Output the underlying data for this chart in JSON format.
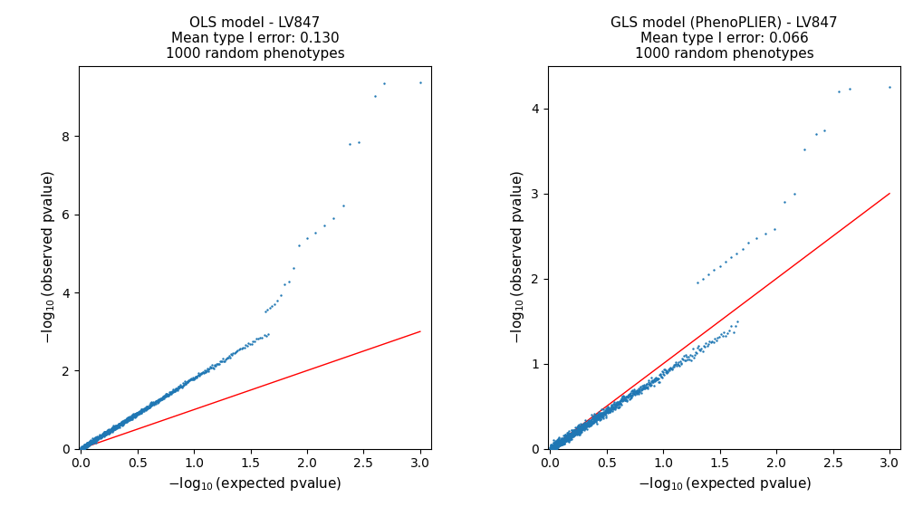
{
  "ols_title": "OLS model - LV847",
  "ols_subtitle1": "Mean type I error: 0.130",
  "ols_subtitle2": "1000 random phenotypes",
  "gls_title": "GLS model (PhenoPLIER) - LV847",
  "gls_subtitle1": "Mean type I error: 0.066",
  "gls_subtitle2": "1000 random phenotypes",
  "xlabel": "$-\\log_{10}$(expected pvalue)",
  "ylabel": "$-\\log_{10}$(observed pvalue)",
  "dot_color": "#1f77b4",
  "line_color": "red",
  "dot_size": 3,
  "ols_ylim": [
    0,
    9.8
  ],
  "gls_ylim": [
    0,
    4.5
  ],
  "xlim": [
    -0.02,
    3.1
  ],
  "ols_xticks": [
    0.0,
    0.5,
    1.0,
    1.5,
    2.0,
    2.5,
    3.0
  ],
  "ols_yticks": [
    0,
    2,
    4,
    6,
    8
  ],
  "gls_xticks": [
    0.0,
    0.5,
    1.0,
    1.5,
    2.0,
    2.5,
    3.0
  ],
  "gls_yticks": [
    0,
    1,
    2,
    3,
    4
  ]
}
